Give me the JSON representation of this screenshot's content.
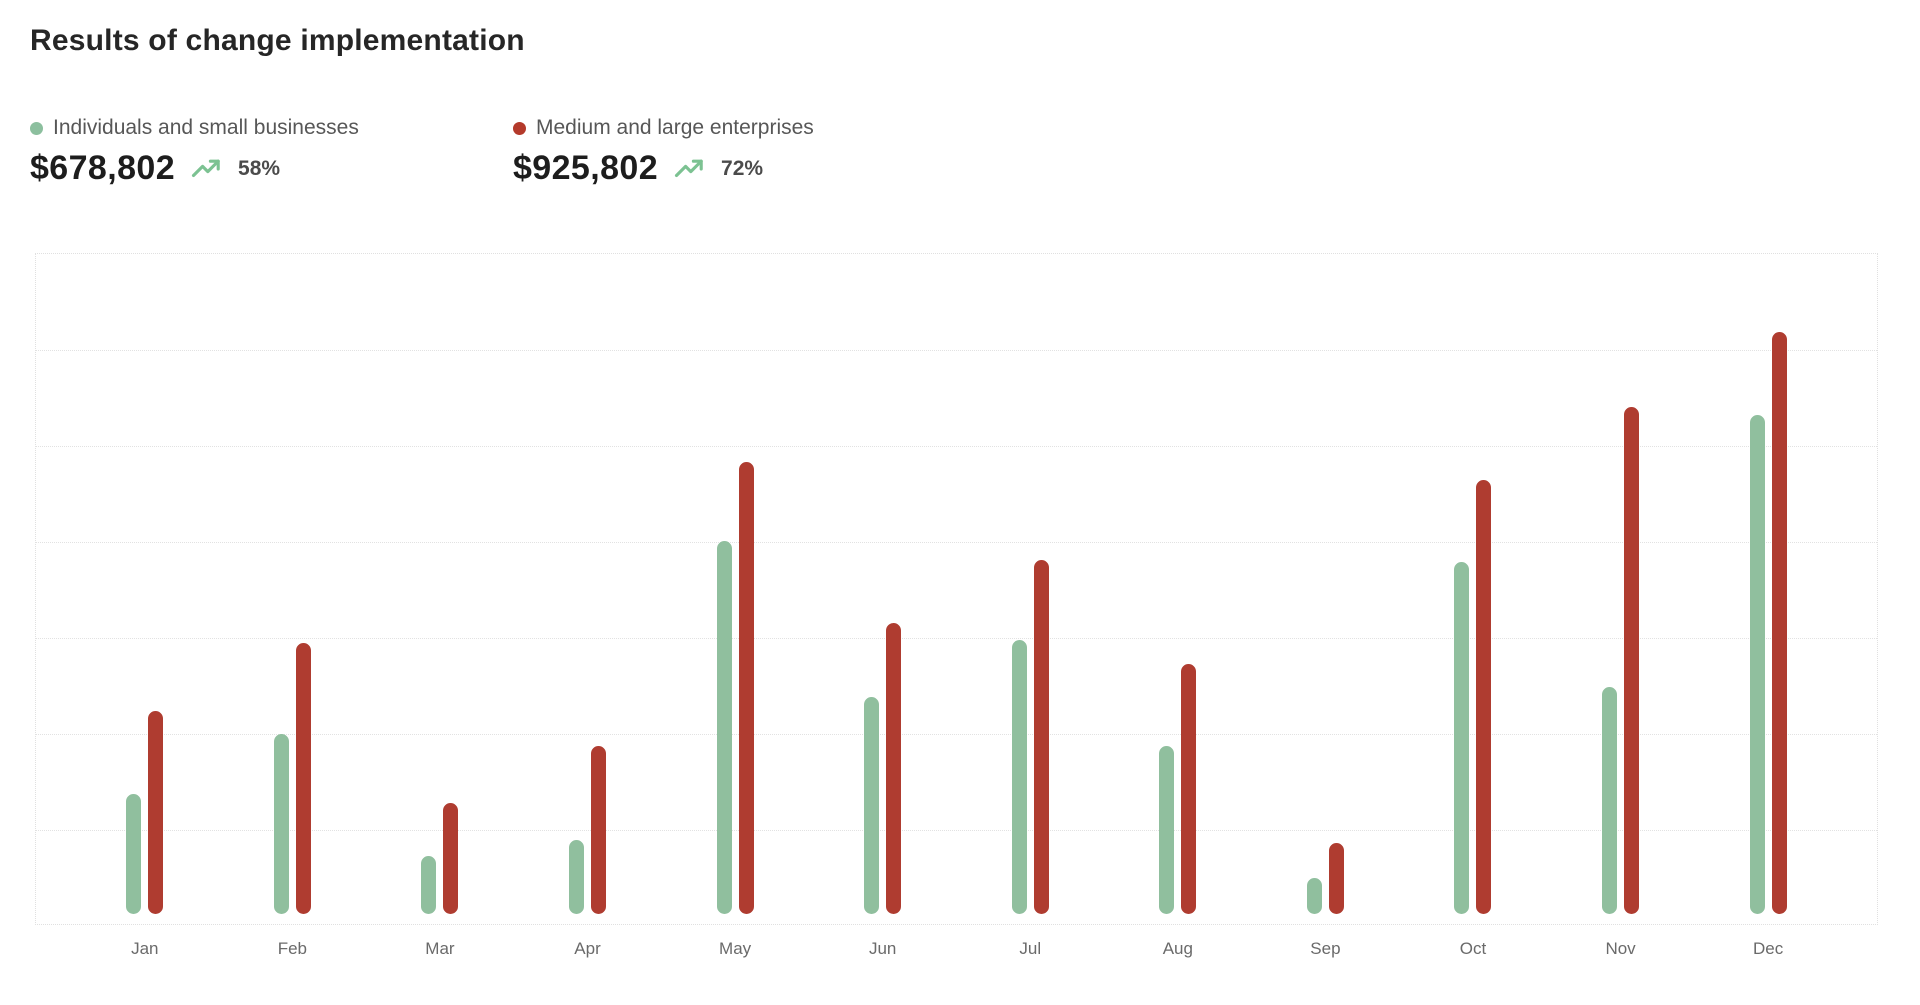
{
  "page": {
    "title": "Results of change implementation",
    "background": "#ffffff"
  },
  "colors": {
    "green_series": "#90bf9e",
    "red_series": "#af3c30",
    "green_dot": "#8cbf9e",
    "red_dot": "#b43a2b",
    "trend_arrow": "#7cc292",
    "gridline": "#e2e2e2",
    "title_text": "#262626",
    "legend_text": "#575757",
    "value_text": "#1d1d1d",
    "percent_text": "#4b4b4b",
    "month_label_text": "#6a6a6a"
  },
  "series_cards": [
    {
      "label": "Individuals and small businesses",
      "value": "$678,802",
      "change": "58%",
      "dot_color": "#8cbf9e",
      "trend_icon": "trending-up-icon"
    },
    {
      "label": "Medium and large enterprises",
      "value": "$925,802",
      "change": "72%",
      "dot_color": "#b43a2b",
      "trend_icon": "trending-up-icon"
    }
  ],
  "chart_data": {
    "type": "bar",
    "title": "Results of change implementation",
    "categories": [
      "Jan",
      "Feb",
      "Mar",
      "Apr",
      "May",
      "Jun",
      "Jul",
      "Aug",
      "Sep",
      "Oct",
      "Nov",
      "Dec"
    ],
    "series": [
      {
        "name": "Individuals and small businesses",
        "color": "#90bf9e",
        "values": [
          125,
          187,
          60,
          77,
          389,
          226,
          285,
          175,
          38,
          367,
          236,
          520
        ]
      },
      {
        "name": "Medium and large enterprises",
        "color": "#af3c30",
        "values": [
          211,
          282,
          116,
          175,
          471,
          303,
          369,
          260,
          74,
          452,
          528,
          606
        ]
      }
    ],
    "xlabel": "",
    "ylabel": "",
    "ylim": [
      0,
      700
    ],
    "gridline_interval": 100,
    "grid": "horizontal-dotted",
    "y_axis_labels_visible": false,
    "legend_position": "top-left"
  }
}
